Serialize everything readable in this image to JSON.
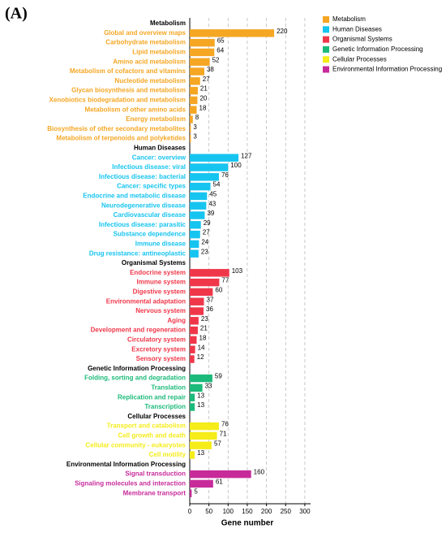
{
  "chart_data": {
    "type": "bar",
    "orientation": "horizontal",
    "panel_label": "(A)",
    "x_label": "Gene number",
    "xlim": [
      0,
      315
    ],
    "xticks": [
      0,
      50,
      100,
      150,
      200,
      250,
      300
    ],
    "grid": true,
    "legend": "top-right",
    "series": [
      {
        "name": "Metabolism",
        "color": "#f5a623",
        "categories": [
          "Global and overview maps",
          "Carbohydrate metabolism",
          "Lipid metabolism",
          "Amino acid metabolism",
          "Metabolism of cofactors and vitamins",
          "Nucleotide metabolism",
          "Glycan biosynthesis and metabolism",
          "Xenobiotics biodegradation and metabolism",
          "Metabolism of other amino acids",
          "Energy metabolism",
          "Biosynthesis of other secondary metabolites",
          "Metabolism of terpenoids and polyketides"
        ],
        "values": [
          220,
          65,
          64,
          52,
          38,
          27,
          21,
          20,
          18,
          8,
          3,
          3
        ]
      },
      {
        "name": "Human Diseases",
        "color": "#16c4f0",
        "categories": [
          "Cancer: overview",
          "Infectious disease: viral",
          "Infectious disease: bacterial",
          "Cancer: specific types",
          "Endocrine and metabolic disease",
          "Neurodegenerative disease",
          "Cardiovascular disease",
          "Infectious disease: parasitic",
          "Substance dependence",
          "Immune disease",
          "Drug resistance: antineoplastic"
        ],
        "values": [
          127,
          100,
          76,
          54,
          45,
          43,
          39,
          29,
          27,
          24,
          23
        ]
      },
      {
        "name": "Organismal Systems",
        "color": "#f0374a",
        "categories": [
          "Endocrine system",
          "Immune system",
          "Digestive system",
          "Environmental adaptation",
          "Nervous system",
          "Aging",
          "Development and regeneration",
          "Circulatory system",
          "Excretory system",
          "Sensory system"
        ],
        "values": [
          103,
          77,
          60,
          37,
          36,
          23,
          21,
          18,
          14,
          12
        ]
      },
      {
        "name": "Genetic Information Processing",
        "color": "#1cba7a",
        "categories": [
          "Folding, sorting and degradation",
          "Translation",
          "Replication and repair",
          "Transcription"
        ],
        "values": [
          59,
          33,
          13,
          13
        ]
      },
      {
        "name": "Cellular Processes",
        "color": "#f5ec1a",
        "categories": [
          "Transport and catabolism",
          "Cell growth and death",
          "Cellular community - eukaryotes",
          "Cell motility"
        ],
        "values": [
          76,
          71,
          57,
          13
        ]
      },
      {
        "name": "Environmental Information Processing",
        "color": "#c72b9a",
        "categories": [
          "Signal transduction",
          "Signaling molecules and interaction",
          "Membrane transport"
        ],
        "values": [
          160,
          61,
          5
        ]
      }
    ]
  }
}
